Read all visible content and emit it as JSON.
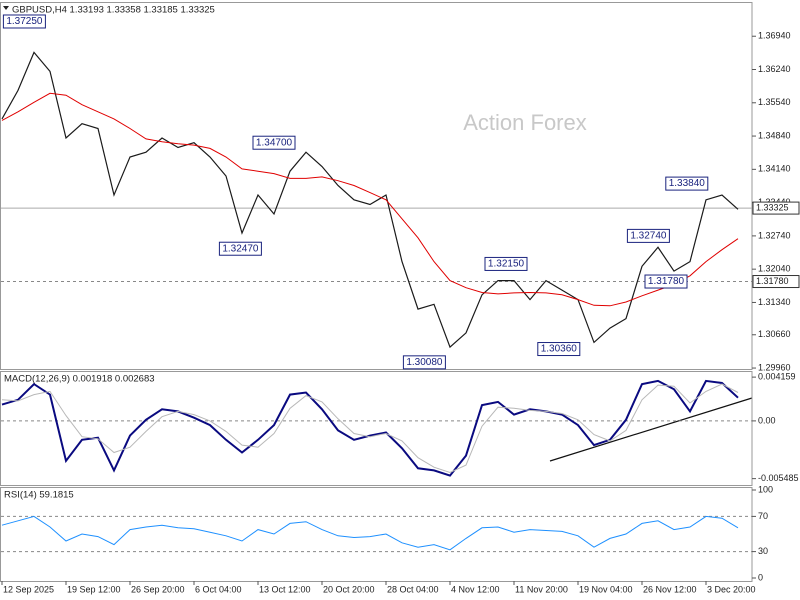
{
  "chart_data": [
    {
      "type": "line",
      "title": "GBPUSD,H4 1.33193 1.33358 1.33185 1.33325",
      "watermark": "Action Forex",
      "ylim": [
        1.2994,
        1.3766
      ],
      "yticks": [
        {
          "value": 1.3694,
          "label": "1.36940"
        },
        {
          "value": 1.3624,
          "label": "1.36240"
        },
        {
          "value": 1.3554,
          "label": "1.35540"
        },
        {
          "value": 1.3484,
          "label": "1.34840"
        },
        {
          "value": 1.3414,
          "label": "1.34140"
        },
        {
          "value": 1.3344,
          "label": "1.33440"
        },
        {
          "value": 1.3274,
          "label": "1.32740"
        },
        {
          "value": 1.3204,
          "label": "1.32040"
        },
        {
          "value": 1.3134,
          "label": "1.31340"
        },
        {
          "value": 1.3066,
          "label": "1.30660"
        },
        {
          "value": 1.2996,
          "label": "1.29960"
        }
      ],
      "levels": [
        {
          "value": 1.33325,
          "label": "1.33325",
          "style": "solid"
        },
        {
          "value": 1.3178,
          "label": "1.31780",
          "style": "dashed"
        }
      ],
      "series": [
        {
          "color": "#1a1a1a",
          "values": [
            1.352,
            1.358,
            1.366,
            1.362,
            1.348,
            1.351,
            1.35,
            1.336,
            1.344,
            1.345,
            1.348,
            1.346,
            1.347,
            1.344,
            1.34,
            1.328,
            1.336,
            1.332,
            1.341,
            1.345,
            1.342,
            1.338,
            1.335,
            1.334,
            1.336,
            1.322,
            1.312,
            1.313,
            1.304,
            1.307,
            1.315,
            1.318,
            1.318,
            1.314,
            1.318,
            1.316,
            1.314,
            1.305,
            1.308,
            1.31,
            1.321,
            1.325,
            1.32,
            1.322,
            1.335,
            1.336,
            1.333
          ]
        },
        {
          "color": "#e00000",
          "values": [
            1.3517,
            1.3535,
            1.3555,
            1.3574,
            1.357,
            1.355,
            1.3535,
            1.352,
            1.35,
            1.3478,
            1.3472,
            1.3468,
            1.3465,
            1.3458,
            1.344,
            1.3415,
            1.341,
            1.3405,
            1.3395,
            1.3395,
            1.3398,
            1.339,
            1.338,
            1.3365,
            1.335,
            1.331,
            1.327,
            1.322,
            1.318,
            1.3165,
            1.3155,
            1.3152,
            1.3154,
            1.3155,
            1.3154,
            1.315,
            1.314,
            1.3128,
            1.3127,
            1.3135,
            1.3148,
            1.316,
            1.3172,
            1.319,
            1.322,
            1.3245,
            1.3268
          ]
        }
      ],
      "annotations": [
        {
          "x": 1.4,
          "value": 1.3725,
          "label": "1.37250"
        },
        {
          "x": 17,
          "value": 1.347,
          "label": "1.34700"
        },
        {
          "x": 14.9,
          "value": 1.3247,
          "label": "1.32470"
        },
        {
          "x": 26.4,
          "value": 1.3008,
          "label": "1.30080"
        },
        {
          "x": 31.5,
          "value": 1.3215,
          "label": "1.32150"
        },
        {
          "x": 34.8,
          "value": 1.3036,
          "label": "1.30360"
        },
        {
          "x": 40.4,
          "value": 1.3274,
          "label": "1.32740"
        },
        {
          "x": 41.5,
          "value": 1.3178,
          "label": "1.31780"
        },
        {
          "x": 42.8,
          "value": 1.3384,
          "label": "1.33840"
        }
      ]
    },
    {
      "type": "line",
      "title": "MACD(12,26,9) 0.001918 0.002683",
      "ylim": [
        -0.00609,
        0.00474
      ],
      "yticks": [
        0.004159,
        {
          "value": 0,
          "label": "0.00"
        },
        -0.005485
      ],
      "levels": [
        0
      ],
      "series": [
        {
          "color": "#0a0a80",
          "values": [
            0.00155,
            0.002,
            0.0035,
            0.0025,
            -0.0038,
            -0.0018,
            -0.0016,
            -0.0047,
            -0.0014,
            0.0001,
            0.0011,
            0.0009,
            0.0003,
            -0.0004,
            -0.0018,
            -0.003,
            -0.0018,
            -0.0004,
            0.0025,
            0.0027,
            0.0011,
            -0.0009,
            -0.0018,
            -0.0014,
            -0.0011,
            -0.0026,
            -0.0045,
            -0.0047,
            -0.0052,
            -0.0033,
            0.0015,
            0.0018,
            0.0006,
            0.0011,
            0.0009,
            0.0006,
            -0.0004,
            -0.0023,
            -0.0018,
            0.0001,
            0.0035,
            0.0038,
            0.003,
            0.0009,
            0.0038,
            0.0036,
            0.0022
          ]
        },
        {
          "color": "#b8b8b8",
          "values": [
            0.002,
            0.0019,
            0.0025,
            0.0028,
            0.0005,
            -0.0015,
            -0.0017,
            -0.003,
            -0.0025,
            -0.001,
            0.0004,
            0.0009,
            0.0006,
            0,
            -0.001,
            -0.0023,
            -0.0025,
            -0.0012,
            0.0012,
            0.0024,
            0.0018,
            0.0002,
            -0.0012,
            -0.0015,
            -0.0012,
            -0.0019,
            -0.0035,
            -0.0044,
            -0.0049,
            -0.0042,
            -0.0005,
            0.0013,
            0.0012,
            0.001,
            0.0009,
            0.0007,
            0.0001,
            -0.0013,
            -0.0019,
            -0.0009,
            0.002,
            0.0034,
            0.0033,
            0.0017,
            0.0028,
            0.0035,
            0.0027
          ]
        }
      ]
    },
    {
      "type": "line",
      "title": "RSI(14) 59.1815",
      "ylim": [
        -3.4,
        103.4
      ],
      "yticks": [
        100,
        70,
        30,
        0
      ],
      "levels": [
        70,
        30
      ],
      "series": [
        {
          "color": "#1e90ff",
          "values": [
            60,
            65,
            70,
            58,
            42,
            50,
            47,
            38,
            55,
            58,
            60,
            57,
            56,
            52,
            48,
            42,
            55,
            50,
            62,
            64,
            55,
            48,
            46,
            47,
            50,
            40,
            35,
            38,
            32,
            45,
            57,
            58,
            52,
            55,
            54,
            53,
            48,
            35,
            45,
            50,
            62,
            65,
            55,
            58,
            70,
            68,
            57
          ]
        }
      ],
      "xticks": [
        {
          "value": 0,
          "label": "12 Sep 2025"
        },
        {
          "value": 4,
          "label": "19 Sep 12:00"
        },
        {
          "value": 8,
          "label": "26 Sep 20:00"
        },
        {
          "value": 12,
          "label": "6 Oct 04:00"
        },
        {
          "value": 16,
          "label": "13 Oct 12:00"
        },
        {
          "value": 20,
          "label": "20 Oct 20:00"
        },
        {
          "value": 24,
          "label": "28 Oct 04:00"
        },
        {
          "value": 28,
          "label": "4 Nov 12:00"
        },
        {
          "value": 32,
          "label": "11 Nov 20:00"
        },
        {
          "value": 36,
          "label": "19 Nov 04:00"
        },
        {
          "value": 40,
          "label": "26 Nov 12:00"
        },
        {
          "value": 44,
          "label": "3 Dec 20:00"
        }
      ]
    }
  ]
}
